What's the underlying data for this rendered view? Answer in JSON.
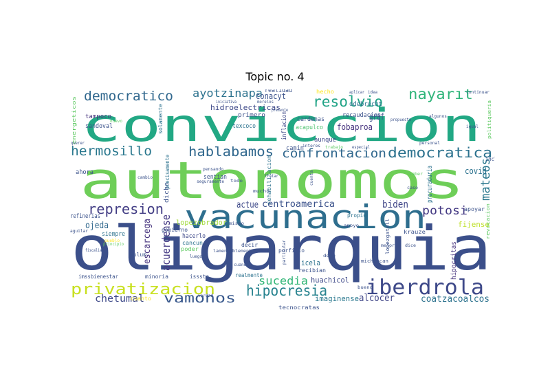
{
  "figure": {
    "title": "Topic no. 4"
  },
  "chart_data": {
    "type": "wordcloud",
    "title": "Topic no. 4",
    "words": [
      {
        "text": "oligarquia",
        "color": "#3b4f8a"
      },
      {
        "text": "conviccion",
        "color": "#22a884"
      },
      {
        "text": "autonomos",
        "color": "#6ece58"
      },
      {
        "text": "vacunacion",
        "color": "#2e6e8e"
      },
      {
        "text": "iberdrola",
        "color": "#3e4989"
      },
      {
        "text": "hipocresia",
        "color": "#26828e"
      },
      {
        "text": "privatizacion",
        "color": "#c8e020"
      },
      {
        "text": "vamonos",
        "color": "#38588c"
      },
      {
        "text": "represion",
        "color": "#433e85"
      },
      {
        "text": "hermosillo",
        "color": "#2a788e"
      },
      {
        "text": "hablabamos",
        "color": "#31688e"
      },
      {
        "text": "democratica",
        "color": "#2c728e"
      },
      {
        "text": "confrontacion",
        "color": "#31688e"
      },
      {
        "text": "democratico",
        "color": "#31688e"
      },
      {
        "text": "nayarit",
        "color": "#31b57b"
      },
      {
        "text": "resolvio",
        "color": "#20a386"
      },
      {
        "text": "ayotzinapa",
        "color": "#2c728e"
      },
      {
        "text": "mateos",
        "color": "#2a788e"
      },
      {
        "text": "potosi",
        "color": "#443983"
      },
      {
        "text": "sucedia",
        "color": "#35b779"
      },
      {
        "text": "acuerdense",
        "color": "#443983"
      },
      {
        "text": "centroamerica",
        "color": "#3b528b"
      },
      {
        "text": "biden",
        "color": "#404688"
      },
      {
        "text": "escarcega",
        "color": "#46337e"
      },
      {
        "text": "actue",
        "color": "#3e4989"
      },
      {
        "text": "ojeda",
        "color": "#31688e"
      },
      {
        "text": "chetumal",
        "color": "#3e4989"
      },
      {
        "text": "alcocer",
        "color": "#404688"
      },
      {
        "text": "coatzacoalcos",
        "color": "#2c728e"
      },
      {
        "text": "fobaproa",
        "color": "#46337e"
      },
      {
        "text": "conacyt",
        "color": "#3b528b"
      },
      {
        "text": "hidroelectricas",
        "color": "#3e4989"
      },
      {
        "text": "covid",
        "color": "#2c728e"
      },
      {
        "text": "graf",
        "color": "#3b528b"
      },
      {
        "text": "huachicol",
        "color": "#3e4989"
      },
      {
        "text": "imaginense",
        "color": "#2a788e"
      },
      {
        "text": "icela",
        "color": "#2c728e"
      },
      {
        "text": "fijense",
        "color": "#bddf26"
      },
      {
        "text": "procuraduria",
        "color": "#2c728e"
      },
      {
        "text": "hipocritas",
        "color": "#46337e"
      },
      {
        "text": "lopezobrador",
        "color": "#a0da39"
      },
      {
        "text": "realidad",
        "color": "#3b528b"
      },
      {
        "text": "hecho",
        "color": "#fde725"
      },
      {
        "text": "primero",
        "color": "#3b528b"
      },
      {
        "text": "texcoco",
        "color": "#2c728e"
      },
      {
        "text": "inflacion",
        "color": "#3e4989"
      },
      {
        "text": "cardenas",
        "color": "#3b528b"
      },
      {
        "text": "acapulco",
        "color": "#4ac16d"
      },
      {
        "text": "odebrecht",
        "color": "#2c728e"
      },
      {
        "text": "tampoco",
        "color": "#46337e"
      },
      {
        "text": "sandoval",
        "color": "#3b528b"
      },
      {
        "text": "solamente",
        "color": "#2c728e"
      },
      {
        "text": "camin",
        "color": "#3b528b"
      },
      {
        "text": "aunque",
        "color": "#3e4989"
      },
      {
        "text": "rehabilitacion",
        "color": "#2c728e"
      },
      {
        "text": "recaudacion",
        "color": "#3b528b"
      },
      {
        "text": "ahora",
        "color": "#3b528b"
      },
      {
        "text": "sentian",
        "color": "#3b528b"
      },
      {
        "text": "dicho",
        "color": "#3b528b"
      },
      {
        "text": "precisamente",
        "color": "#2c728e"
      },
      {
        "text": "refinerias",
        "color": "#3b528b"
      },
      {
        "text": "siempre",
        "color": "#2c728e"
      },
      {
        "text": "gobierno",
        "color": "#3b528b"
      },
      {
        "text": "hacerlo",
        "color": "#3e4989"
      },
      {
        "text": "cancun",
        "color": "#2c728e"
      },
      {
        "text": "poder",
        "color": "#5ec962"
      },
      {
        "text": "tulum",
        "color": "#3b528b"
      },
      {
        "text": "minoria",
        "color": "#3b528b"
      },
      {
        "text": "imssbienestar",
        "color": "#3b528b"
      },
      {
        "text": "issste",
        "color": "#3b528b"
      },
      {
        "text": "realmente",
        "color": "#2c728e"
      },
      {
        "text": "recibian",
        "color": "#3b528b"
      },
      {
        "text": "porfirio",
        "color": "#3b528b"
      },
      {
        "text": "decir",
        "color": "#3b528b"
      },
      {
        "text": "propio",
        "color": "#2c728e"
      },
      {
        "text": "michoacan",
        "color": "#3b528b"
      },
      {
        "text": "krauze",
        "color": "#3b528b"
      },
      {
        "text": "apoyar",
        "color": "#3b528b"
      },
      {
        "text": "tecnocratas",
        "color": "#3b528b"
      },
      {
        "text": "cuanto",
        "color": "#fde725"
      },
      {
        "text": "incluso",
        "color": "#3b528b"
      },
      {
        "text": "lopezgatell",
        "color": "#3b528b"
      },
      {
        "text": "energeticos",
        "color": "#5ec962"
      },
      {
        "text": "politiqueria",
        "color": "#5ec962"
      },
      {
        "text": "revocacion",
        "color": "#5ec962"
      },
      {
        "text": "particular",
        "color": "#3b528b"
      },
      {
        "text": "aplicar",
        "color": "#3b528b"
      },
      {
        "text": "idea",
        "color": "#3b528b"
      },
      {
        "text": "continuar",
        "color": "#3b528b"
      },
      {
        "text": "lamentablemente",
        "color": "#3b528b"
      },
      {
        "text": "aguilar",
        "color": "#3b528b"
      },
      {
        "text": "principio",
        "color": "#5ec962"
      },
      {
        "text": "fiscalia",
        "color": "#3b528b"
      },
      {
        "text": "morelos",
        "color": "#3b528b"
      },
      {
        "text": "presente",
        "color": "#3b528b"
      },
      {
        "text": "propuesta",
        "color": "#3b528b"
      },
      {
        "text": "personal",
        "color": "#3b528b"
      },
      {
        "text": "iniciativa",
        "color": "#3b528b"
      },
      {
        "text": "apoyo",
        "color": "#3b528b"
      },
      {
        "text": "cuenta",
        "color": "#3b528b"
      },
      {
        "text": "pensando",
        "color": "#3b528b"
      },
      {
        "text": "mucho",
        "color": "#3b528b"
      },
      {
        "text": "mismo",
        "color": "#3b528b"
      },
      {
        "text": "todo",
        "color": "#3b528b"
      },
      {
        "text": "tratar",
        "color": "#3b528b"
      },
      {
        "text": "nuevo",
        "color": "#5ec962"
      },
      {
        "text": "trabajo",
        "color": "#5ec962"
      },
      {
        "text": "especial",
        "color": "#3b528b"
      },
      {
        "text": "interes",
        "color": "#3b528b"
      },
      {
        "text": "seguramente",
        "color": "#3b528b"
      },
      {
        "text": "querer",
        "color": "#3b528b"
      },
      {
        "text": "cambio",
        "color": "#3b528b"
      },
      {
        "text": "pueblo",
        "color": "#fde725"
      },
      {
        "text": "caso",
        "color": "#3b528b"
      },
      {
        "text": "algunos",
        "color": "#3b528b"
      },
      {
        "text": "bueno",
        "color": "#3b528b"
      },
      {
        "text": "luego",
        "color": "#3b528b"
      },
      {
        "text": "cuando",
        "color": "#3b528b"
      },
      {
        "text": "mejor",
        "color": "#3b528b"
      },
      {
        "text": "debe",
        "color": "#3b528b"
      },
      {
        "text": "dice",
        "color": "#3b528b"
      },
      {
        "text": "saber",
        "color": "#5ec962"
      },
      {
        "text": "verdad",
        "color": "#3b528b"
      },
      {
        "text": "igual",
        "color": "#3b528b"
      }
    ]
  }
}
